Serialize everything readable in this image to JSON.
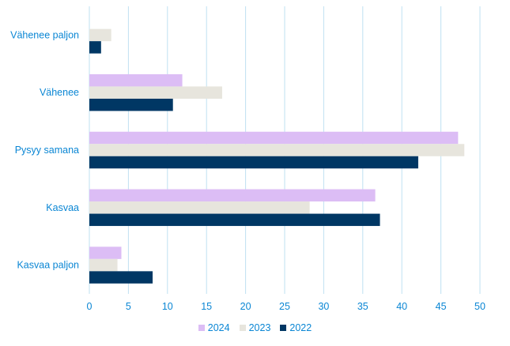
{
  "chart_data": {
    "type": "bar",
    "orientation": "horizontal",
    "categories": [
      "Vähenee paljon",
      "Vähenee",
      "Pysyy samana",
      "Kasvaa",
      "Kasvaa paljon"
    ],
    "series": [
      {
        "name": "2024",
        "color": "#dcbdf5",
        "values": [
          0,
          11.9,
          47.2,
          36.6,
          4.1
        ]
      },
      {
        "name": "2023",
        "color": "#e7e5dd",
        "values": [
          2.8,
          17.0,
          48.0,
          28.2,
          3.6
        ]
      },
      {
        "name": "2022",
        "color": "#003764",
        "values": [
          1.5,
          10.7,
          42.1,
          37.2,
          8.1
        ]
      }
    ],
    "xlim": [
      0,
      50
    ],
    "xticks": [
      0,
      5,
      10,
      15,
      20,
      25,
      30,
      35,
      40,
      45,
      50
    ],
    "grid": true,
    "legend_position": "bottom",
    "label_color": "#0a86d4",
    "grid_color": "#bfe0f2"
  }
}
